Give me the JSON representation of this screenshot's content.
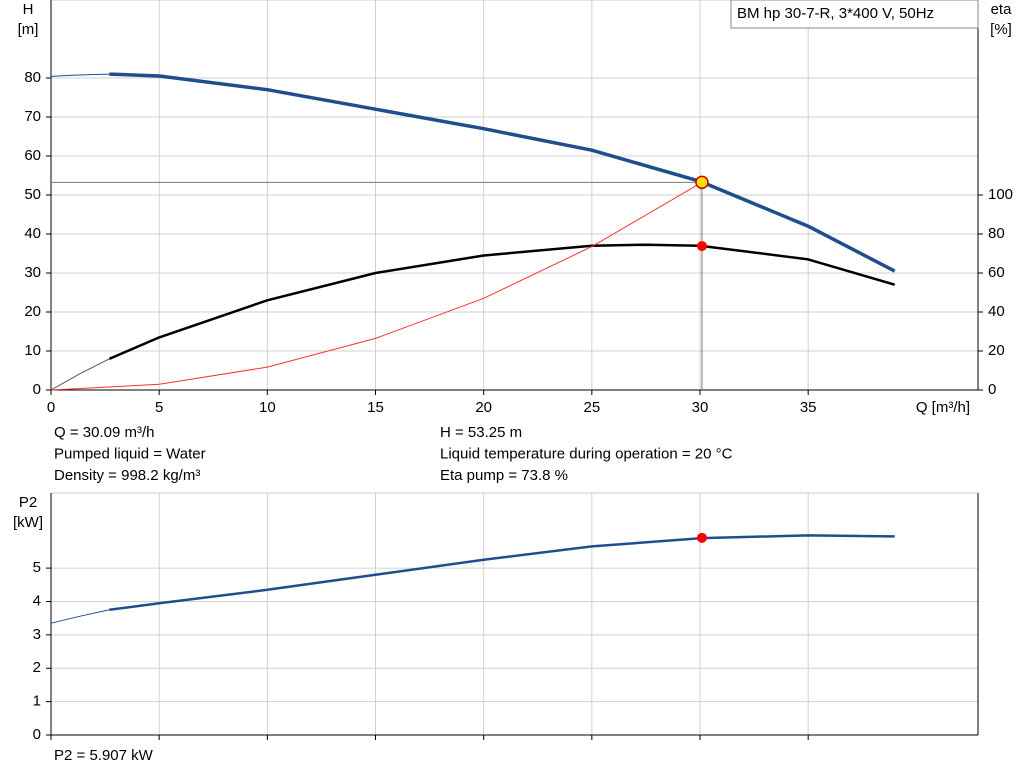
{
  "chart_data": [
    {
      "type": "line",
      "title": "BM hp 30-7-R, 3*400 V, 50Hz",
      "ylabel": "H",
      "yunit": "[m]",
      "y2label": "eta",
      "y2unit": "[%]",
      "xlabel": "Q [m³/h]",
      "xlim": [
        0,
        42.85
      ],
      "xticks": [
        0,
        5,
        10,
        15,
        20,
        25,
        30,
        35
      ],
      "ylim": [
        0,
        100
      ],
      "yticks": [
        0,
        10,
        20,
        30,
        40,
        50,
        60,
        70,
        80
      ],
      "y2lim": [
        0,
        200
      ],
      "y2ticks": [
        0,
        20,
        40,
        60,
        80,
        100
      ],
      "grid": true,
      "series": [
        {
          "color": "#1f4e8c",
          "line_width": 1,
          "x": [
            0,
            1,
            2,
            2.7
          ],
          "values": [
            80.4,
            80.7,
            80.9,
            81
          ]
        },
        {
          "color": "#1f4e8c",
          "line_width": 3.5,
          "x": [
            2.7,
            5,
            10,
            15,
            20,
            25,
            30,
            35,
            39
          ],
          "values": [
            81,
            80.5,
            77,
            72,
            67,
            61.5,
            53.5,
            42,
            30.5
          ]
        },
        {
          "color": "#555555",
          "line_width": 1,
          "axis": "y2",
          "x": [
            0,
            1.35,
            2.7
          ],
          "values": [
            0,
            8.4,
            16
          ]
        },
        {
          "color": "#000000",
          "line_width": 2.5,
          "axis": "y2",
          "x": [
            2.7,
            5,
            10,
            15,
            20,
            25,
            27.5,
            30,
            35,
            39
          ],
          "values": [
            16,
            27,
            46,
            60,
            69,
            74,
            74.5,
            74,
            67,
            54
          ]
        },
        {
          "color": "#ff3030",
          "line_width": 1,
          "x": [
            0,
            5,
            10,
            15,
            20,
            25,
            30.09
          ],
          "values": [
            0,
            1.47,
            5.88,
            13.23,
            23.52,
            36.76,
            53.25
          ]
        }
      ],
      "points": [
        {
          "x": 30.09,
          "y": 53.25,
          "color": "#ffe000",
          "crosshair": true
        },
        {
          "x": 30.09,
          "y": 73.8,
          "color": "#ff0000",
          "axis": "y2"
        }
      ],
      "notes_left": [
        "Q = 30.09 m³/h",
        "Pumped liquid = Water",
        "Density = 998.2 kg/m³"
      ],
      "notes_right": [
        "H = 53.25 m",
        "Liquid temperature during operation = 20 °C",
        "Eta pump = 73.8 %"
      ]
    },
    {
      "type": "line",
      "ylabel": "P2",
      "yunit": "[kW]",
      "xlim": [
        0,
        42.85
      ],
      "xticks": [
        0,
        5,
        10,
        15,
        20,
        25,
        30,
        35
      ],
      "ylim": [
        0,
        7.25
      ],
      "yticks": [
        0,
        1,
        2,
        3,
        4,
        5
      ],
      "grid": true,
      "series": [
        {
          "color": "#1f4e8c",
          "line_width": 1,
          "x": [
            0,
            1.35,
            2.7
          ],
          "values": [
            3.35,
            3.56,
            3.75
          ]
        },
        {
          "color": "#1f4e8c",
          "line_width": 2.5,
          "x": [
            2.7,
            5,
            10,
            15,
            20,
            25,
            30.09,
            35,
            39
          ],
          "values": [
            3.75,
            3.95,
            4.35,
            4.8,
            5.25,
            5.65,
            5.9,
            5.98,
            5.95
          ]
        }
      ],
      "points": [
        {
          "x": 30.09,
          "y": 5.907,
          "color": "#ff0000"
        }
      ],
      "notes_left": [
        "P2 = 5.907 kW"
      ]
    }
  ]
}
